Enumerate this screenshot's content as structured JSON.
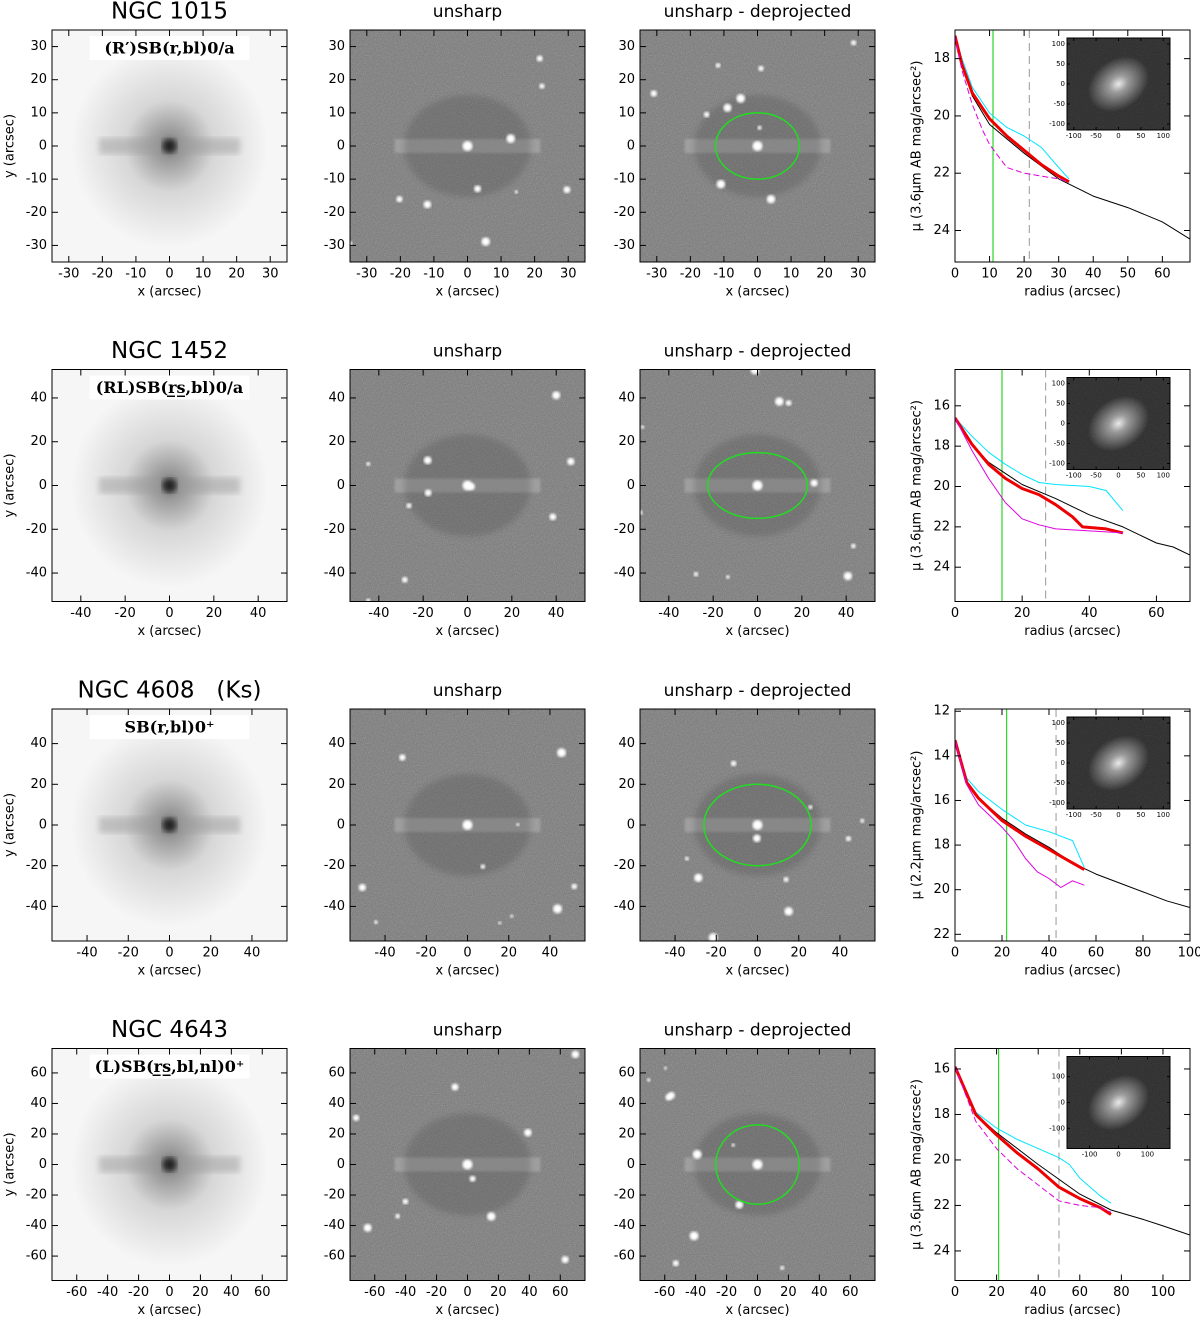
{
  "chart_data": [
    {
      "type": "image",
      "style": "galaxy",
      "title": "NGC 1015",
      "annotation": "(R′)SB(r,bl)0/a",
      "xlim": [
        -35,
        35
      ],
      "ylim": [
        -35,
        35
      ],
      "xticks": [
        -30,
        -20,
        -10,
        0,
        10,
        20,
        30
      ],
      "yticks": [
        -30,
        -20,
        -10,
        0,
        10,
        20,
        30
      ],
      "xlabel": "x (arcsec)",
      "ylabel": "y (arcsec)"
    },
    {
      "type": "image",
      "style": "unsharp",
      "title": "unsharp",
      "xlim": [
        -35,
        35
      ],
      "ylim": [
        -35,
        35
      ],
      "xticks": [
        -30,
        -20,
        -10,
        0,
        10,
        20,
        30
      ],
      "yticks": [
        -30,
        -20,
        -10,
        0,
        10,
        20,
        30
      ],
      "xlabel": "x (arcsec)"
    },
    {
      "type": "image",
      "style": "unsharp",
      "title": "unsharp - deprojected",
      "xlim": [
        -35,
        35
      ],
      "ylim": [
        -35,
        35
      ],
      "xticks": [
        -30,
        -20,
        -10,
        0,
        10,
        20,
        30
      ],
      "yticks": [
        -30,
        -20,
        -10,
        0,
        10,
        20,
        30
      ],
      "xlabel": "x (arcsec)",
      "ellipse": {
        "a": 12.5,
        "b": 10,
        "color": "#22dd22"
      }
    },
    {
      "type": "line",
      "xlim": [
        0,
        68
      ],
      "ylim": [
        25.1,
        17
      ],
      "xticks": [
        0,
        10,
        20,
        30,
        40,
        50,
        60
      ],
      "yticks": [
        18,
        20,
        22,
        24
      ],
      "xlabel": "radius (arcsec)",
      "ylabel": "μ (3.6μm AB mag/arcsec²)",
      "series": [
        {
          "color": "#000000",
          "width": 1,
          "x": [
            0,
            2,
            5,
            10,
            20,
            30,
            40,
            50,
            60,
            68
          ],
          "values": [
            17.2,
            18.2,
            19.3,
            20.3,
            21.3,
            22.2,
            22.8,
            23.2,
            23.7,
            24.3
          ]
        },
        {
          "color": "#00e5ff",
          "width": 1,
          "x": [
            0,
            2,
            5,
            10,
            15,
            20,
            25,
            30,
            33
          ],
          "values": [
            17.2,
            18,
            19,
            19.9,
            20.4,
            20.7,
            21.1,
            21.8,
            22.2
          ]
        },
        {
          "color": "#ee0000",
          "width": 3,
          "x": [
            0,
            2,
            5,
            10,
            15,
            20,
            25,
            30,
            33
          ],
          "values": [
            17.2,
            18.2,
            19.2,
            20.1,
            20.7,
            21.2,
            21.7,
            22.1,
            22.3
          ]
        },
        {
          "color": "#dd00dd",
          "width": 1,
          "dash": true,
          "x": [
            0,
            2,
            5,
            8,
            10,
            15,
            20,
            25,
            30,
            33
          ],
          "values": [
            17.2,
            18.4,
            19.6,
            20.5,
            21,
            21.8,
            22,
            22.1,
            22.2,
            22.3
          ]
        }
      ],
      "vlines": [
        {
          "x": 11,
          "color": "#00cc00"
        },
        {
          "x": 21.5,
          "color": "#999999",
          "dash": true
        }
      ],
      "inset": {
        "xlim": [
          -115,
          115
        ],
        "ylim": [
          -115,
          115
        ],
        "xticks": [
          -100,
          -50,
          0,
          50,
          100
        ],
        "yticks": [
          -100,
          -50,
          0,
          50,
          100
        ]
      }
    },
    {
      "type": "image",
      "style": "galaxy",
      "title": "NGC 1452",
      "annotation": "(RL)SB(r̲s̲,bl)0/a",
      "xlim": [
        -53,
        53
      ],
      "ylim": [
        -53,
        53
      ],
      "xticks": [
        -40,
        -20,
        0,
        20,
        40
      ],
      "yticks": [
        -40,
        -20,
        0,
        20,
        40
      ],
      "xlabel": "x (arcsec)",
      "ylabel": "y (arcsec)"
    },
    {
      "type": "image",
      "style": "unsharp",
      "title": "unsharp",
      "xlim": [
        -53,
        53
      ],
      "ylim": [
        -53,
        53
      ],
      "xticks": [
        -40,
        -20,
        0,
        20,
        40
      ],
      "yticks": [
        -40,
        -20,
        0,
        20,
        40
      ],
      "xlabel": "x (arcsec)"
    },
    {
      "type": "image",
      "style": "unsharp",
      "title": "unsharp - deprojected",
      "xlim": [
        -53,
        53
      ],
      "ylim": [
        -53,
        53
      ],
      "xticks": [
        -40,
        -20,
        0,
        20,
        40
      ],
      "yticks": [
        -40,
        -20,
        0,
        20,
        40
      ],
      "xlabel": "x (arcsec)",
      "ellipse": {
        "a": 22.5,
        "b": 15,
        "color": "#22dd22"
      }
    },
    {
      "type": "line",
      "xlim": [
        0,
        70
      ],
      "ylim": [
        25.7,
        14.2
      ],
      "xticks": [
        0,
        20,
        40,
        60
      ],
      "yticks": [
        16,
        18,
        20,
        22,
        24
      ],
      "xlabel": "radius (arcsec)",
      "ylabel": "μ (3.6μm AB mag/arcsec²)",
      "series": [
        {
          "color": "#000000",
          "width": 1,
          "x": [
            0,
            5,
            10,
            20,
            30,
            40,
            50,
            55,
            60,
            65,
            70
          ],
          "values": [
            16.6,
            17.9,
            18.8,
            19.9,
            20.6,
            21.4,
            22,
            22.4,
            22.8,
            23,
            23.4
          ]
        },
        {
          "color": "#00e5ff",
          "width": 1,
          "x": [
            0,
            5,
            10,
            15,
            20,
            25,
            30,
            40,
            45,
            50
          ],
          "values": [
            16.6,
            17.5,
            18.3,
            18.9,
            19.4,
            19.8,
            19.9,
            20,
            20.2,
            21.2
          ]
        },
        {
          "color": "#ee0000",
          "width": 3,
          "x": [
            0,
            5,
            10,
            15,
            20,
            25,
            30,
            35,
            38,
            45,
            50
          ],
          "values": [
            16.6,
            17.9,
            18.9,
            19.6,
            20.1,
            20.4,
            20.9,
            21.5,
            22,
            22.1,
            22.3
          ]
        },
        {
          "color": "#dd00dd",
          "width": 1,
          "x": [
            0,
            5,
            10,
            15,
            20,
            25,
            30,
            40,
            50
          ],
          "values": [
            16.6,
            18.2,
            19.6,
            20.8,
            21.6,
            21.9,
            22.1,
            22.2,
            22.3
          ]
        }
      ],
      "vlines": [
        {
          "x": 14,
          "color": "#00cc00"
        },
        {
          "x": 27,
          "color": "#999999",
          "dash": true
        }
      ],
      "inset": {
        "xlim": [
          -115,
          115
        ],
        "ylim": [
          -115,
          115
        ],
        "xticks": [
          -100,
          -50,
          0,
          50,
          100
        ],
        "yticks": [
          -100,
          -50,
          0,
          50,
          100
        ]
      }
    },
    {
      "type": "image",
      "style": "galaxy",
      "title": "NGC 4608   (Ks)",
      "annotation": "SB(r,bl)0⁺",
      "xlim": [
        -57,
        57
      ],
      "ylim": [
        -57,
        57
      ],
      "xticks": [
        -40,
        -20,
        0,
        20,
        40
      ],
      "yticks": [
        -40,
        -20,
        0,
        20,
        40
      ],
      "xlabel": "x (arcsec)",
      "ylabel": "y (arcsec)"
    },
    {
      "type": "image",
      "style": "unsharp",
      "title": "unsharp",
      "xlim": [
        -57,
        57
      ],
      "ylim": [
        -57,
        57
      ],
      "xticks": [
        -40,
        -20,
        0,
        20,
        40
      ],
      "yticks": [
        -40,
        -20,
        0,
        20,
        40
      ],
      "xlabel": "x (arcsec)"
    },
    {
      "type": "image",
      "style": "unsharp",
      "title": "unsharp - deprojected",
      "xlim": [
        -57,
        57
      ],
      "ylim": [
        -57,
        57
      ],
      "xticks": [
        -40,
        -20,
        0,
        20,
        40
      ],
      "yticks": [
        -40,
        -20,
        0,
        20,
        40
      ],
      "xlabel": "x (arcsec)",
      "ellipse": {
        "a": 26,
        "b": 20,
        "color": "#22dd22"
      }
    },
    {
      "type": "line",
      "xlim": [
        0,
        100
      ],
      "ylim": [
        22.3,
        11.9
      ],
      "xticks": [
        0,
        20,
        40,
        60,
        80,
        100
      ],
      "yticks": [
        12,
        14,
        16,
        18,
        20,
        22
      ],
      "xlabel": "radius (arcsec)",
      "ylabel": "μ (2.2μm mag/arcsec²)",
      "series": [
        {
          "color": "#000000",
          "width": 1,
          "x": [
            0,
            5,
            10,
            20,
            30,
            40,
            50,
            60,
            70,
            80,
            90,
            100
          ],
          "values": [
            13.3,
            15.2,
            15.9,
            16.8,
            17.5,
            18.1,
            18.8,
            19.3,
            19.7,
            20.1,
            20.5,
            20.8
          ]
        },
        {
          "color": "#00e5ff",
          "width": 1,
          "x": [
            0,
            5,
            10,
            20,
            30,
            40,
            50,
            55
          ],
          "values": [
            13.3,
            15,
            15.6,
            16.4,
            17.1,
            17.4,
            17.8,
            19
          ]
        },
        {
          "color": "#ee0000",
          "width": 3,
          "x": [
            0,
            5,
            10,
            20,
            30,
            40,
            50,
            55
          ],
          "values": [
            13.3,
            15.2,
            15.9,
            16.9,
            17.6,
            18.2,
            18.8,
            19.1
          ]
        },
        {
          "color": "#dd00dd",
          "width": 1,
          "x": [
            0,
            5,
            10,
            20,
            25,
            30,
            35,
            40,
            45,
            50,
            55
          ],
          "values": [
            13.3,
            15.3,
            16.2,
            17.2,
            17.8,
            18.6,
            19.2,
            19.5,
            19.9,
            19.6,
            19.8
          ]
        }
      ],
      "vlines": [
        {
          "x": 22,
          "color": "#00cc00"
        },
        {
          "x": 43,
          "color": "#999999",
          "dash": true
        }
      ],
      "inset": {
        "xlim": [
          -115,
          115
        ],
        "ylim": [
          -115,
          115
        ],
        "xticks": [
          -100,
          -50,
          0,
          50,
          100
        ],
        "yticks": [
          -100,
          -50,
          0,
          50,
          100
        ]
      }
    },
    {
      "type": "image",
      "style": "galaxy",
      "title": "NGC 4643",
      "annotation": "(L)SB(r̲s̲,bl,nl)0⁺",
      "xlim": [
        -76,
        76
      ],
      "ylim": [
        -76,
        76
      ],
      "xticks": [
        -60,
        -40,
        -20,
        0,
        20,
        40,
        60
      ],
      "yticks": [
        -60,
        -40,
        -20,
        0,
        20,
        40,
        60
      ],
      "xlabel": "x (arcsec)",
      "ylabel": "y (arcsec)"
    },
    {
      "type": "image",
      "style": "unsharp",
      "title": "unsharp",
      "xlim": [
        -76,
        76
      ],
      "ylim": [
        -76,
        76
      ],
      "xticks": [
        -60,
        -40,
        -20,
        0,
        20,
        40,
        60
      ],
      "yticks": [
        -60,
        -40,
        -20,
        0,
        20,
        40,
        60
      ],
      "xlabel": "x (arcsec)"
    },
    {
      "type": "image",
      "style": "unsharp",
      "title": "unsharp - deprojected",
      "xlim": [
        -76,
        76
      ],
      "ylim": [
        -76,
        76
      ],
      "xticks": [
        -60,
        -40,
        -20,
        0,
        20,
        40,
        60
      ],
      "yticks": [
        -60,
        -40,
        -20,
        0,
        20,
        40,
        60
      ],
      "xlabel": "x (arcsec)",
      "ellipse": {
        "a": 27,
        "b": 26,
        "color": "#22dd22"
      }
    },
    {
      "type": "line",
      "xlim": [
        0,
        113
      ],
      "ylim": [
        25.3,
        15.1
      ],
      "xticks": [
        0,
        20,
        40,
        60,
        80,
        100
      ],
      "yticks": [
        16,
        18,
        20,
        22,
        24
      ],
      "xlabel": "radius (arcsec)",
      "ylabel": "μ (3.6μm AB mag/arcsec²)",
      "series": [
        {
          "color": "#000000",
          "width": 1,
          "x": [
            0,
            10,
            20,
            40,
            60,
            75,
            90,
            100,
            113
          ],
          "values": [
            15.9,
            18,
            18.8,
            20.2,
            21.5,
            22.2,
            22.6,
            22.9,
            23.3
          ]
        },
        {
          "color": "#00e5ff",
          "width": 1,
          "x": [
            0,
            10,
            20,
            30,
            40,
            50,
            55,
            60,
            70,
            75
          ],
          "values": [
            15.9,
            17.9,
            18.6,
            19.1,
            19.5,
            19.9,
            20.2,
            20.8,
            21.6,
            21.9
          ]
        },
        {
          "color": "#ee0000",
          "width": 3,
          "x": [
            0,
            10,
            20,
            30,
            40,
            50,
            60,
            70,
            75
          ],
          "values": [
            15.9,
            18,
            18.9,
            19.7,
            20.4,
            21.2,
            21.7,
            22.1,
            22.4
          ]
        },
        {
          "color": "#dd00dd",
          "width": 1,
          "dash": true,
          "x": [
            0,
            10,
            20,
            30,
            40,
            50,
            60,
            70,
            75
          ],
          "values": [
            15.9,
            18.3,
            19.5,
            20.4,
            21.1,
            21.8,
            22,
            22.1,
            22.3
          ]
        }
      ],
      "vlines": [
        {
          "x": 21,
          "color": "#00cc00"
        },
        {
          "x": 50,
          "color": "#999999",
          "dash": true
        }
      ],
      "inset": {
        "xlim": [
          -178,
          178
        ],
        "ylim": [
          -178,
          178
        ],
        "xticks": [
          -100,
          0,
          100
        ],
        "yticks": [
          -100,
          0,
          100
        ]
      }
    }
  ]
}
